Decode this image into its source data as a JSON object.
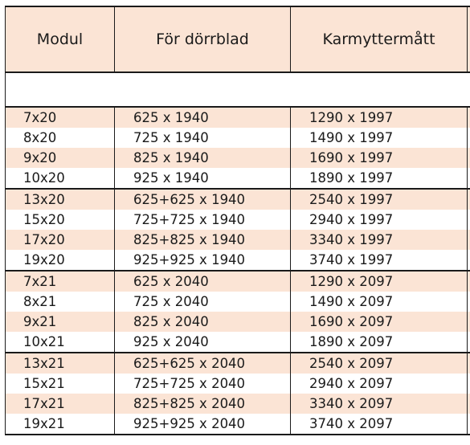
{
  "columns": [
    "Modul",
    "För dörrblad",
    "Karmyttermått"
  ],
  "rows": [
    [
      "7x20",
      "625 x 1940",
      "1290 x 1997"
    ],
    [
      "8x20",
      "725 x 1940",
      "1490 x 1997"
    ],
    [
      "9x20",
      "825 x 1940",
      "1690 x 1997"
    ],
    [
      "10x20",
      "925 x 1940",
      "1890 x 1997"
    ],
    [
      "13x20",
      "625+625 x 1940",
      "2540 x 1997"
    ],
    [
      "15x20",
      "725+725 x 1940",
      "2940 x 1997"
    ],
    [
      "17x20",
      "825+825 x 1940",
      "3340 x 1997"
    ],
    [
      "19x20",
      "925+925 x 1940",
      "3740 x 1997"
    ],
    [
      "7x21",
      "625 x 2040",
      "1290 x 2097"
    ],
    [
      "8x21",
      "725 x 2040",
      "1490 x 2097"
    ],
    [
      "9x21",
      "825 x 2040",
      "1690 x 2097"
    ],
    [
      "10x21",
      "925 x 2040",
      "1890 x 2097"
    ],
    [
      "13x21",
      "625+625 x 2040",
      "2540 x 2097"
    ],
    [
      "15x21",
      "725+725 x 2040",
      "2940 x 2097"
    ],
    [
      "17x21",
      "825+825 x 2040",
      "3340 x 2097"
    ],
    [
      "19x21",
      "925+925 x 2040",
      "3740 x 2097"
    ]
  ],
  "colors": {
    "band": "#fbe4d5",
    "border": "#1a1a1a"
  }
}
